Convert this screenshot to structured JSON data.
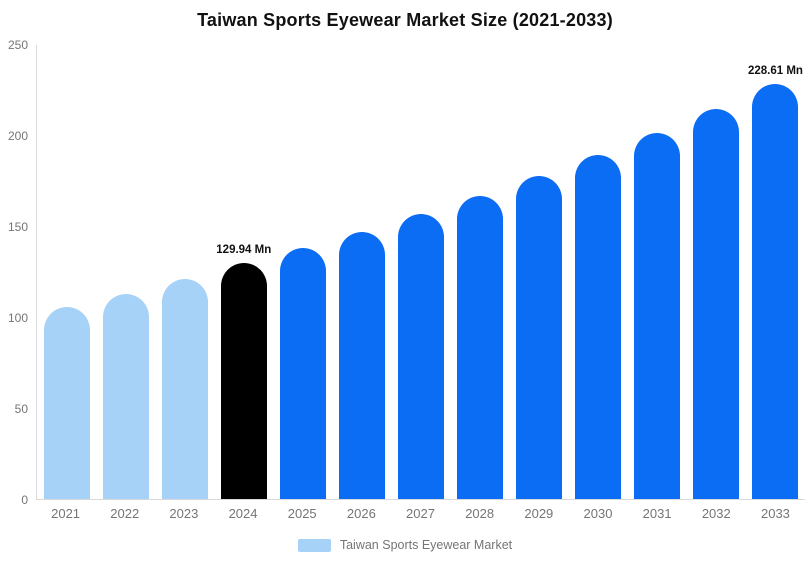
{
  "page": {
    "background": "#ffffff"
  },
  "chart_data": {
    "type": "bar",
    "title": "Taiwan Sports Eyewear Market Size (2021-2033)",
    "unit": "Mn",
    "categories": [
      "2021",
      "2022",
      "2023",
      "2024",
      "2025",
      "2026",
      "2027",
      "2028",
      "2029",
      "2030",
      "2031",
      "2032",
      "2033"
    ],
    "values": [
      106,
      113,
      121,
      129.94,
      138.35,
      147.31,
      156.85,
      167.01,
      177.82,
      189.34,
      201.6,
      214.66,
      228.61
    ],
    "colors": [
      "#a6d2f7",
      "#a6d2f7",
      "#a6d2f7",
      "#000000",
      "#0b6cf4",
      "#0b6cf4",
      "#0b6cf4",
      "#0b6cf4",
      "#0b6cf4",
      "#0b6cf4",
      "#0b6cf4",
      "#0b6cf4",
      "#0b6cf4"
    ],
    "annotations": [
      {
        "category": "2024",
        "text": "129.94 Mn"
      },
      {
        "category": "2033",
        "text": "228.61 Mn"
      }
    ],
    "ylim": [
      0,
      250
    ],
    "yticks": [
      0,
      50,
      100,
      150,
      200,
      250
    ],
    "grid": false,
    "xlabel": "",
    "ylabel": "",
    "legend": {
      "position": "bottom",
      "items": [
        {
          "label": "Taiwan Sports Eyewear Market",
          "color": "#a6d2f7"
        }
      ]
    }
  },
  "styles": {
    "axis_line": "#d9d9d9",
    "tick_color": "#757575",
    "title_color": "#111111",
    "annotation_color": "#111111"
  }
}
